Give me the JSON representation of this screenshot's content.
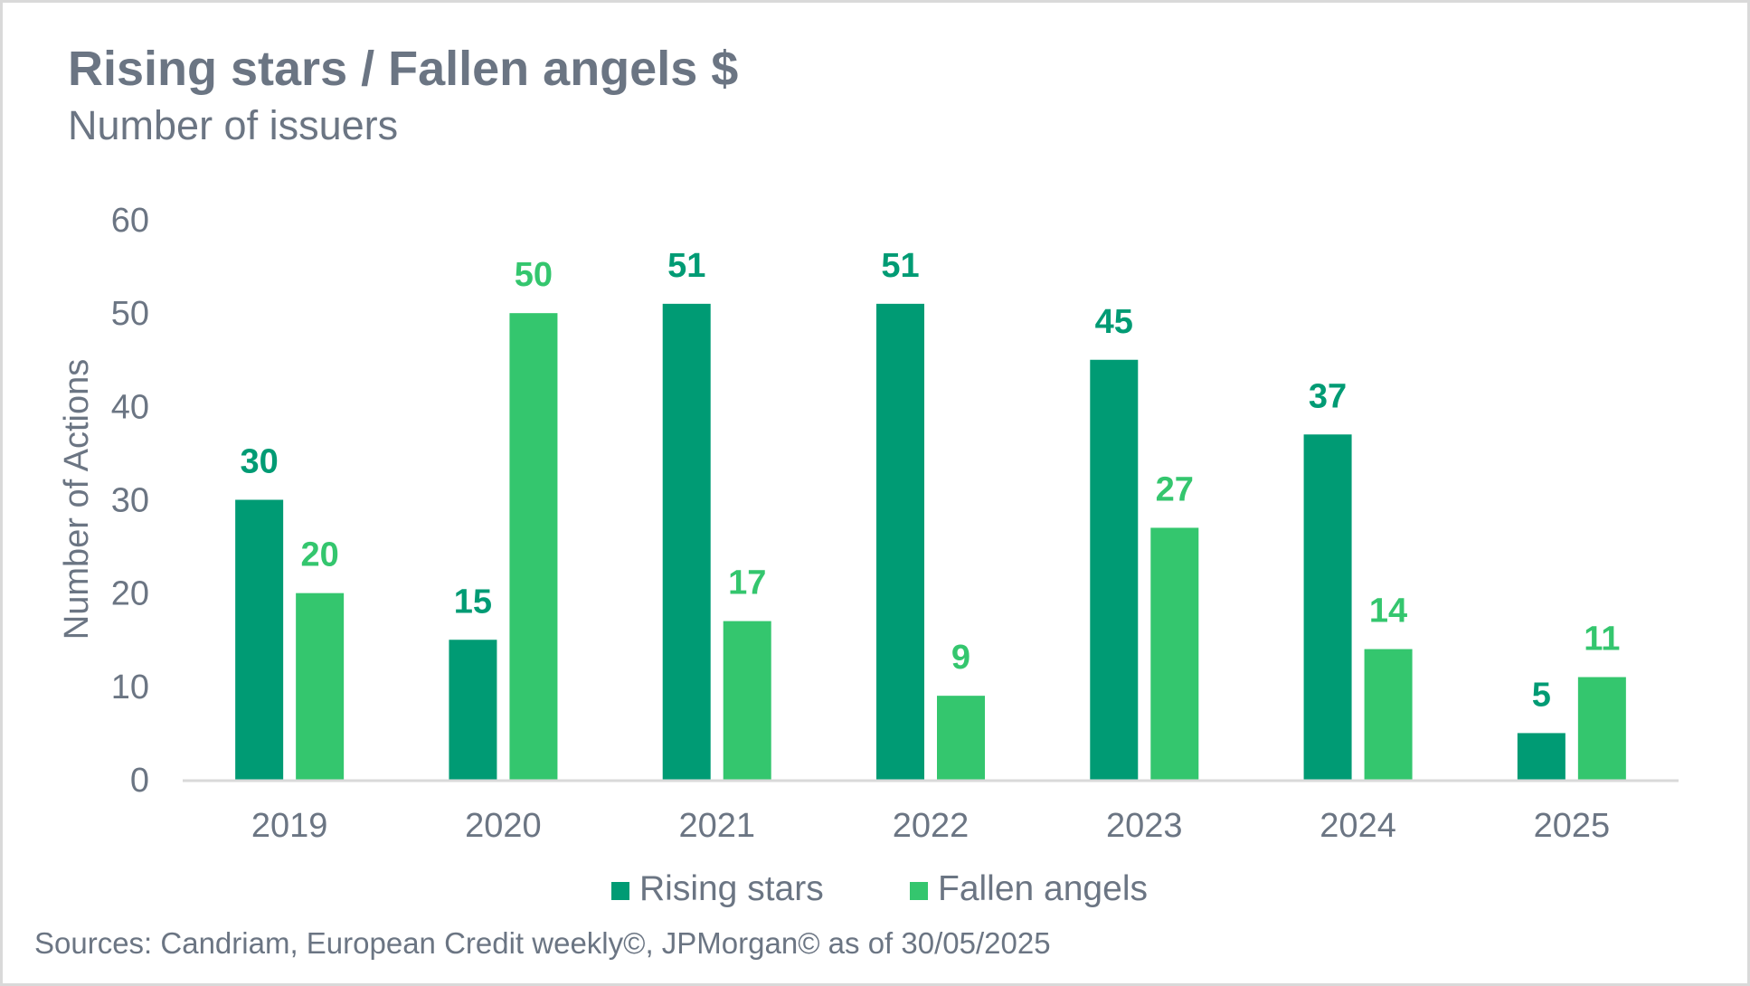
{
  "header": {
    "title": "Rising stars / Fallen angels $",
    "subtitle": "Number of issuers"
  },
  "footer": {
    "source": "Sources: Candriam, European Credit weekly©, JPMorgan© as of 30/05/2025"
  },
  "colors": {
    "rising": "#009b74",
    "fallen": "#34c66e",
    "text": "#6b7583",
    "axis": "#d9d9d9"
  },
  "chart_data": {
    "type": "bar",
    "title": "Rising stars / Fallen angels $",
    "subtitle": "Number of issuers",
    "xlabel": "",
    "ylabel": "Number of Actions",
    "ylim": [
      0,
      60
    ],
    "yticks": [
      "0",
      "10",
      "20",
      "30",
      "40",
      "50",
      "60"
    ],
    "grid": false,
    "legend_position": "bottom",
    "categories": [
      "2019",
      "2020",
      "2021",
      "2022",
      "2023",
      "2024",
      "2025"
    ],
    "series": [
      {
        "name": "Rising stars",
        "values": [
          30,
          15,
          51,
          51,
          45,
          37,
          5
        ]
      },
      {
        "name": "Fallen angels",
        "values": [
          20,
          50,
          17,
          9,
          27,
          14,
          11
        ]
      }
    ]
  }
}
